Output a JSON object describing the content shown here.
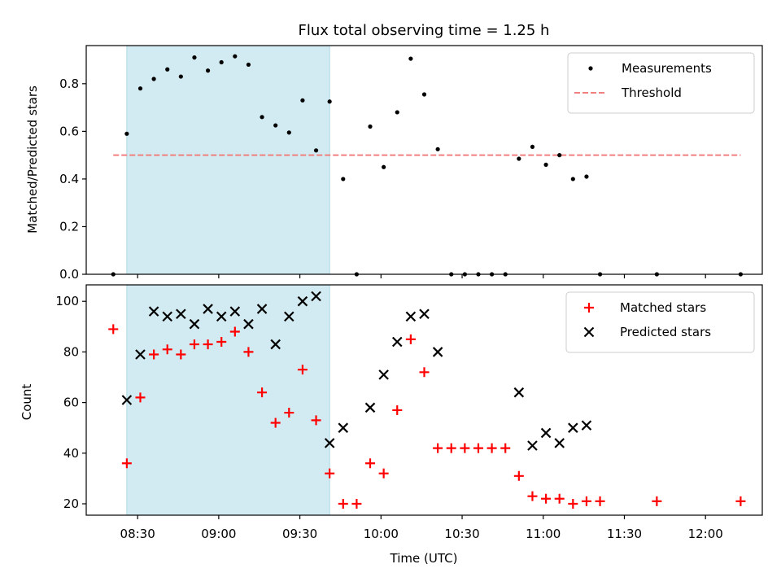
{
  "chart_data": [
    {
      "type": "scatter",
      "title": "Flux total observing time = 1.25 h",
      "xlabel": "",
      "ylabel": "Matched/Predicted stars",
      "xlim": [
        "08:11",
        "12:21"
      ],
      "ylim": [
        0,
        0.96
      ],
      "yticks": [
        0.0,
        0.2,
        0.4,
        0.6,
        0.8
      ],
      "ytick_labels": [
        "0.0",
        "0.2",
        "0.4",
        "0.6",
        "0.8"
      ],
      "shaded_span": {
        "x_start": "08:26",
        "x_end": "09:41",
        "color": "#add8e6"
      },
      "legend_position": "top-right",
      "threshold": {
        "name": "Threshold",
        "y": 0.5,
        "x_start": "08:21",
        "x_end": "12:13",
        "color": "#f08080",
        "style": "dashed"
      },
      "series": [
        {
          "name": "Measurements",
          "marker": "dot",
          "color": "#000000",
          "points": [
            [
              "08:21",
              0.0
            ],
            [
              "08:26",
              0.59
            ],
            [
              "08:31",
              0.78
            ],
            [
              "08:36",
              0.82
            ],
            [
              "08:41",
              0.86
            ],
            [
              "08:46",
              0.83
            ],
            [
              "08:51",
              0.91
            ],
            [
              "08:56",
              0.855
            ],
            [
              "09:01",
              0.89
            ],
            [
              "09:06",
              0.915
            ],
            [
              "09:11",
              0.88
            ],
            [
              "09:16",
              0.66
            ],
            [
              "09:21",
              0.625
            ],
            [
              "09:26",
              0.595
            ],
            [
              "09:31",
              0.73
            ],
            [
              "09:36",
              0.52
            ],
            [
              "09:41",
              0.725
            ],
            [
              "09:46",
              0.4
            ],
            [
              "09:51",
              0.0
            ],
            [
              "09:56",
              0.62
            ],
            [
              "10:01",
              0.45
            ],
            [
              "10:06",
              0.68
            ],
            [
              "10:11",
              0.905
            ],
            [
              "10:16",
              0.755
            ],
            [
              "10:21",
              0.525
            ],
            [
              "10:26",
              0.0
            ],
            [
              "10:31",
              0.0
            ],
            [
              "10:36",
              0.0
            ],
            [
              "10:41",
              0.0
            ],
            [
              "10:46",
              0.0
            ],
            [
              "10:51",
              0.485
            ],
            [
              "10:56",
              0.535
            ],
            [
              "11:01",
              0.46
            ],
            [
              "11:06",
              0.5
            ],
            [
              "11:11",
              0.4
            ],
            [
              "11:16",
              0.41
            ],
            [
              "11:21",
              0.0
            ],
            [
              "11:42",
              0.0
            ],
            [
              "12:13",
              0.0
            ]
          ]
        }
      ]
    },
    {
      "type": "scatter",
      "title": "",
      "xlabel": "Time (UTC)",
      "ylabel": "Count",
      "xlim": [
        "08:11",
        "12:21"
      ],
      "ylim": [
        15.5,
        106.5
      ],
      "yticks": [
        20,
        40,
        60,
        80,
        100
      ],
      "ytick_labels": [
        "20",
        "40",
        "60",
        "80",
        "100"
      ],
      "xticks": [
        "08:30",
        "09:00",
        "09:30",
        "10:00",
        "10:30",
        "11:00",
        "11:30",
        "12:00"
      ],
      "xtick_labels": [
        "08:30",
        "09:00",
        "09:30",
        "10:00",
        "10:30",
        "11:00",
        "11:30",
        "12:00"
      ],
      "shaded_span": {
        "x_start": "08:26",
        "x_end": "09:41",
        "color": "#add8e6"
      },
      "legend_position": "top-right",
      "series": [
        {
          "name": "Matched stars",
          "marker": "plus",
          "color": "#ff0000",
          "points": [
            [
              "08:21",
              89
            ],
            [
              "08:26",
              36
            ],
            [
              "08:31",
              62
            ],
            [
              "08:36",
              79
            ],
            [
              "08:41",
              81
            ],
            [
              "08:46",
              79
            ],
            [
              "08:51",
              83
            ],
            [
              "08:56",
              83
            ],
            [
              "09:01",
              84
            ],
            [
              "09:06",
              88
            ],
            [
              "09:11",
              80
            ],
            [
              "09:16",
              64
            ],
            [
              "09:21",
              52
            ],
            [
              "09:26",
              56
            ],
            [
              "09:31",
              73
            ],
            [
              "09:36",
              53
            ],
            [
              "09:41",
              32
            ],
            [
              "09:46",
              20
            ],
            [
              "09:51",
              20
            ],
            [
              "09:56",
              36
            ],
            [
              "10:01",
              32
            ],
            [
              "10:06",
              57
            ],
            [
              "10:11",
              85
            ],
            [
              "10:16",
              72
            ],
            [
              "10:21",
              42
            ],
            [
              "10:26",
              42
            ],
            [
              "10:31",
              42
            ],
            [
              "10:36",
              42
            ],
            [
              "10:41",
              42
            ],
            [
              "10:46",
              42
            ],
            [
              "10:51",
              31
            ],
            [
              "10:56",
              23
            ],
            [
              "11:01",
              22
            ],
            [
              "11:06",
              22
            ],
            [
              "11:11",
              20
            ],
            [
              "11:16",
              21
            ],
            [
              "11:21",
              21
            ],
            [
              "11:42",
              21
            ],
            [
              "12:13",
              21
            ]
          ]
        },
        {
          "name": "Predicted stars",
          "marker": "x",
          "color": "#000000",
          "points": [
            [
              "08:26",
              61
            ],
            [
              "08:31",
              79
            ],
            [
              "08:36",
              96
            ],
            [
              "08:41",
              94
            ],
            [
              "08:46",
              95
            ],
            [
              "08:51",
              91
            ],
            [
              "08:56",
              97
            ],
            [
              "09:01",
              94
            ],
            [
              "09:06",
              96
            ],
            [
              "09:11",
              91
            ],
            [
              "09:16",
              97
            ],
            [
              "09:21",
              83
            ],
            [
              "09:26",
              94
            ],
            [
              "09:31",
              100
            ],
            [
              "09:36",
              102
            ],
            [
              "09:41",
              44
            ],
            [
              "09:46",
              50
            ],
            [
              "09:56",
              58
            ],
            [
              "10:01",
              71
            ],
            [
              "10:06",
              84
            ],
            [
              "10:11",
              94
            ],
            [
              "10:16",
              95
            ],
            [
              "10:21",
              80
            ],
            [
              "10:51",
              64
            ],
            [
              "10:56",
              43
            ],
            [
              "11:01",
              48
            ],
            [
              "11:06",
              44
            ],
            [
              "11:11",
              50
            ],
            [
              "11:16",
              51
            ]
          ]
        }
      ]
    }
  ]
}
